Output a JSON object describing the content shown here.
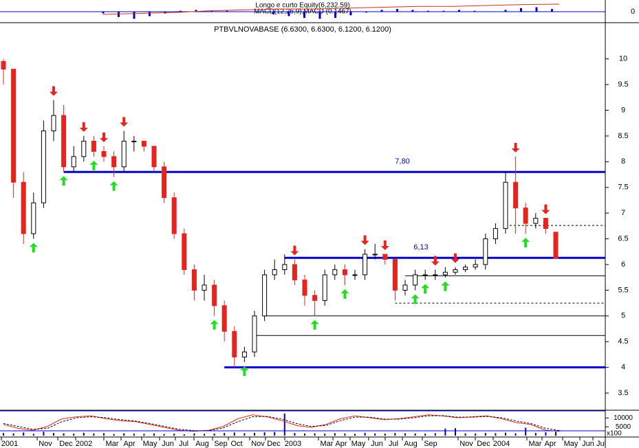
{
  "chart_data": {
    "type": "candlestick",
    "title": "PTBVLNOVABASE (6.6300, 6.6300, 6.1200, 6.1200)",
    "top_panel": {
      "equity_label": "Longo e curto Equity(6,232.59)",
      "macd_label": "MACD(12,26,9),MACD (0.1467)",
      "yticks": [
        0
      ],
      "ylim": [
        -1,
        1
      ],
      "macd": [
        -0.2,
        -0.6,
        -0.8,
        -0.5,
        -0.2,
        0.1,
        0.2,
        0.1,
        0.1,
        0.0,
        -0.1,
        -0.3,
        -0.5,
        -0.7,
        -0.8,
        -0.7,
        -0.4,
        -0.1,
        0.2,
        0.3,
        0.2,
        0.1,
        0.1,
        0.2,
        0.1,
        0.0,
        0.2,
        0.4,
        0.5,
        0.3
      ],
      "equity": [
        -0.3,
        -0.2,
        -0.1,
        0.1,
        0.2,
        0.3,
        0.3,
        0.4,
        0.5,
        0.6,
        0.6,
        0.7,
        0.8,
        0.85
      ]
    },
    "x_labels": [
      "2001",
      "Nov",
      "Dec",
      "2002",
      "Mar",
      "Apr",
      "May",
      "Jun",
      "Jul",
      "Aug",
      "Sep",
      "Oct",
      "Nov",
      "Dec",
      "2003",
      "Mar",
      "Apr",
      "May",
      "Jun",
      "Jul",
      "Aug",
      "Sep",
      "Nov",
      "Dec",
      "2004",
      "Mar",
      "Apr",
      "May",
      "Jun",
      "Jul"
    ],
    "open": [
      9.95,
      9.8,
      7.6,
      6.6,
      7.2,
      8.6,
      8.9,
      7.9,
      8.1,
      8.4,
      8.2,
      8.1,
      7.9,
      8.4,
      8.4,
      8.3,
      7.9,
      7.3,
      6.6,
      5.9,
      5.5,
      5.6,
      5.2,
      4.7,
      4.2,
      4.3,
      5.0,
      5.8,
      5.9,
      6.0,
      5.7,
      5.4,
      5.3,
      5.8,
      5.9,
      5.8,
      5.8,
      6.2,
      6.2,
      6.1,
      5.5,
      5.6,
      5.8,
      5.8,
      5.8,
      5.85,
      5.9,
      5.95,
      6.0,
      6.5,
      6.7,
      7.6,
      7.1,
      6.8,
      6.9,
      6.63
    ],
    "high": [
      10.0,
      9.8,
      7.8,
      7.4,
      8.8,
      9.2,
      9.1,
      8.3,
      8.5,
      8.5,
      8.3,
      8.2,
      8.6,
      8.5,
      8.4,
      8.3,
      8.0,
      7.4,
      6.7,
      6.0,
      5.8,
      5.7,
      5.3,
      4.8,
      4.4,
      5.1,
      5.9,
      6.1,
      6.2,
      6.1,
      5.8,
      5.5,
      5.9,
      6.0,
      6.0,
      5.9,
      6.3,
      6.4,
      6.2,
      6.1,
      5.7,
      5.9,
      5.9,
      5.9,
      5.95,
      5.95,
      6.0,
      6.1,
      6.6,
      6.8,
      7.8,
      8.1,
      7.2,
      7.0,
      6.9,
      6.63
    ],
    "low": [
      9.5,
      7.3,
      6.4,
      6.5,
      7.1,
      8.4,
      7.8,
      7.8,
      8.0,
      8.1,
      8.0,
      7.7,
      7.8,
      8.2,
      8.2,
      7.8,
      7.2,
      6.5,
      5.8,
      5.3,
      5.3,
      5.0,
      4.5,
      4.0,
      4.1,
      4.2,
      4.9,
      5.7,
      5.8,
      5.6,
      5.2,
      5.0,
      5.2,
      5.7,
      5.6,
      5.7,
      5.7,
      6.1,
      6.0,
      5.3,
      5.4,
      5.5,
      5.7,
      5.7,
      5.75,
      5.8,
      5.85,
      5.9,
      5.9,
      6.4,
      6.6,
      6.6,
      6.6,
      6.7,
      6.6,
      6.12
    ],
    "close": [
      9.8,
      7.6,
      6.6,
      7.2,
      8.6,
      8.9,
      7.9,
      8.1,
      8.4,
      8.2,
      8.1,
      7.9,
      8.4,
      8.4,
      8.3,
      7.9,
      7.3,
      6.6,
      5.9,
      5.5,
      5.6,
      5.2,
      4.7,
      4.2,
      4.3,
      5.0,
      5.8,
      5.9,
      6.0,
      5.7,
      5.4,
      5.3,
      5.8,
      5.9,
      5.8,
      5.8,
      6.2,
      6.2,
      6.1,
      5.5,
      5.6,
      5.8,
      5.8,
      5.8,
      5.85,
      5.9,
      5.95,
      6.0,
      6.5,
      6.7,
      7.6,
      7.1,
      6.8,
      6.9,
      6.7,
      6.12
    ],
    "up_color": "#ffffff",
    "down_color": "#e8231e",
    "ylim": [
      3.3,
      10.45
    ],
    "yticks": [
      3.5,
      4.0,
      4.5,
      5.0,
      5.5,
      6.0,
      6.5,
      7.0,
      7.5,
      8.0,
      8.5,
      9.0,
      9.5,
      10.0
    ],
    "levels": [
      {
        "value": 7.8,
        "label": "7,80"
      },
      {
        "value": 6.13,
        "label": "6,13"
      },
      {
        "value": 4.0
      },
      {
        "value": 5.78
      },
      {
        "value": 5.0
      },
      {
        "value": 4.62
      },
      {
        "value": 5.25
      },
      {
        "value": 6.76
      }
    ],
    "volume": {
      "ylim": [
        0,
        14000
      ],
      "yticks": [
        10000,
        5000
      ],
      "unit": "x100",
      "values": [
        1500,
        1200,
        1800,
        1000,
        2200,
        1500,
        1300,
        1100,
        1600,
        1200,
        1400,
        900,
        1300,
        1100,
        1000,
        1200,
        900,
        1100,
        800,
        1300,
        1000,
        1200,
        1500,
        1800,
        1400,
        1600,
        1900,
        2100,
        12500,
        1500,
        1200,
        1300,
        1100,
        1400,
        1200,
        1000,
        1600,
        1200,
        1100,
        1500,
        1300,
        1200,
        1100,
        1400,
        4000,
        4200,
        1300,
        1200,
        1500,
        1400,
        1700,
        1300,
        4500,
        1600,
        1900,
        2200
      ]
    },
    "stochastic": {
      "ylim": [
        0,
        100
      ],
      "k": [
        40,
        20,
        10,
        30,
        70,
        80,
        85,
        70,
        60,
        55,
        40,
        25,
        10,
        5,
        10,
        30,
        70,
        90,
        80,
        60,
        35,
        25,
        40,
        70,
        85,
        75,
        65,
        70,
        80,
        90,
        85,
        75,
        80,
        85,
        70,
        50,
        40,
        10,
        5
      ],
      "d": [
        45,
        30,
        15,
        20,
        55,
        75,
        80,
        75,
        65,
        58,
        45,
        30,
        15,
        8,
        8,
        22,
        55,
        80,
        82,
        68,
        45,
        30,
        35,
        60,
        78,
        78,
        68,
        68,
        75,
        85,
        86,
        78,
        78,
        82,
        75,
        58,
        45,
        20,
        8
      ]
    }
  }
}
